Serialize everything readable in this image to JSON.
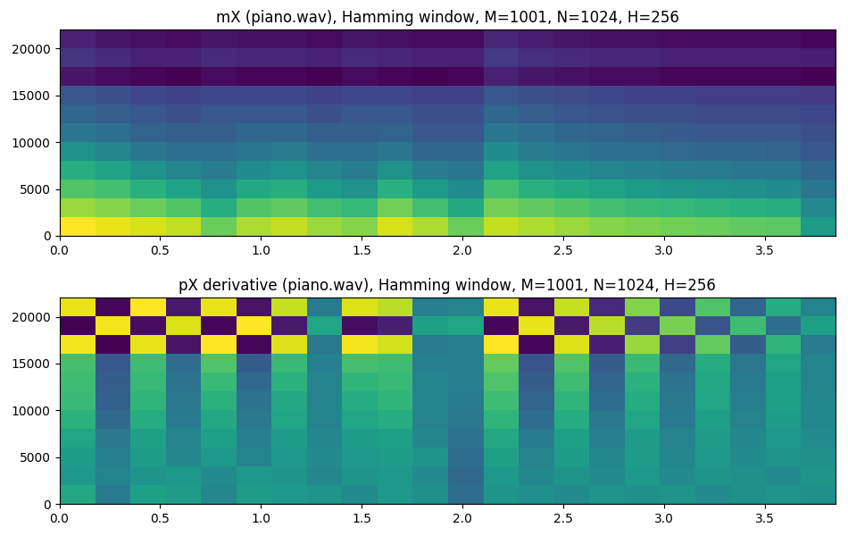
{
  "chart_data": [
    {
      "type": "heatmap",
      "title": "mX (piano.wav), Hamming window, M=1001, N=1024, H=256",
      "xlim": [
        0.0,
        3.85
      ],
      "ylim": [
        0,
        22050
      ],
      "xticks": [
        0.0,
        0.5,
        1.0,
        1.5,
        2.0,
        2.5,
        3.0,
        3.5
      ],
      "yticks": [
        0,
        5000,
        10000,
        15000,
        20000
      ],
      "cells": [
        [
          -30,
          -32,
          -34,
          -36,
          -45,
          -38,
          -36,
          -40,
          -42,
          -34,
          -38,
          -45,
          -36,
          -38,
          -40,
          -42,
          -43,
          -44,
          -45,
          -46,
          -47,
          -60
        ],
        [
          -40,
          -42,
          -45,
          -48,
          -55,
          -48,
          -46,
          -50,
          -52,
          -44,
          -50,
          -56,
          -44,
          -46,
          -48,
          -50,
          -51,
          -52,
          -53,
          -54,
          -55,
          -65
        ],
        [
          -48,
          -50,
          -54,
          -58,
          -62,
          -56,
          -55,
          -60,
          -62,
          -54,
          -60,
          -64,
          -50,
          -54,
          -56,
          -58,
          -60,
          -61,
          -62,
          -63,
          -64,
          -70
        ],
        [
          -55,
          -58,
          -62,
          -66,
          -68,
          -64,
          -62,
          -66,
          -68,
          -62,
          -68,
          -70,
          -58,
          -62,
          -64,
          -66,
          -67,
          -68,
          -69,
          -70,
          -70,
          -74
        ],
        [
          -62,
          -66,
          -70,
          -72,
          -72,
          -70,
          -68,
          -72,
          -72,
          -70,
          -74,
          -74,
          -64,
          -68,
          -70,
          -72,
          -72,
          -73,
          -74,
          -74,
          -75,
          -78
        ],
        [
          -70,
          -72,
          -75,
          -76,
          -76,
          -74,
          -74,
          -76,
          -76,
          -75,
          -78,
          -78,
          -70,
          -72,
          -74,
          -75,
          -76,
          -77,
          -78,
          -78,
          -78,
          -80
        ],
        [
          -74,
          -76,
          -78,
          -80,
          -78,
          -78,
          -78,
          -80,
          -78,
          -78,
          -80,
          -80,
          -74,
          -76,
          -78,
          -79,
          -80,
          -80,
          -81,
          -81,
          -81,
          -82
        ],
        [
          -78,
          -80,
          -82,
          -83,
          -82,
          -82,
          -82,
          -83,
          -82,
          -82,
          -83,
          -83,
          -78,
          -80,
          -81,
          -82,
          -83,
          -83,
          -84,
          -84,
          -84,
          -85
        ],
        [
          -92,
          -94,
          -95,
          -96,
          -94,
          -95,
          -95,
          -96,
          -94,
          -95,
          -96,
          -95,
          -90,
          -92,
          -93,
          -94,
          -94,
          -95,
          -95,
          -95,
          -95,
          -96
        ],
        [
          -86,
          -88,
          -90,
          -90,
          -88,
          -89,
          -89,
          -90,
          -88,
          -89,
          -90,
          -90,
          -85,
          -87,
          -88,
          -89,
          -89,
          -90,
          -90,
          -90,
          -90,
          -91
        ],
        [
          -90,
          -92,
          -93,
          -94,
          -92,
          -93,
          -93,
          -94,
          -92,
          -93,
          -94,
          -94,
          -89,
          -91,
          -92,
          -93,
          -93,
          -94,
          -94,
          -94,
          -94,
          -95
        ]
      ]
    },
    {
      "type": "heatmap",
      "title": "pX derivative (piano.wav), Hamming window, M=1001, N=1024, H=256",
      "xlim": [
        0.0,
        3.85
      ],
      "ylim": [
        0,
        22050
      ],
      "xticks": [
        0.0,
        0.5,
        1.0,
        1.5,
        2.0,
        2.5,
        3.0,
        3.5
      ],
      "yticks": [
        0,
        5000,
        10000,
        15000,
        20000
      ],
      "cells": [
        [
          0.6,
          -0.5,
          0.4,
          0.3,
          -0.2,
          0.3,
          0.2,
          0.1,
          -0.1,
          0.2,
          0.0,
          -0.8,
          0.1,
          0.0,
          -0.1,
          0.1,
          0.0,
          0.1,
          -0.1,
          0.0,
          0.1,
          0.0
        ],
        [
          0.2,
          -0.3,
          0.1,
          0.2,
          -0.1,
          0.2,
          0.1,
          -0.2,
          0.1,
          0.2,
          -0.1,
          -0.9,
          0.2,
          -0.2,
          0.1,
          -0.1,
          0.2,
          -0.1,
          0.1,
          0.0,
          -0.1,
          0.1
        ],
        [
          0.3,
          -0.4,
          0.3,
          -0.2,
          0.2,
          -0.3,
          0.2,
          -0.1,
          0.2,
          0.3,
          0.1,
          -0.8,
          0.4,
          -0.3,
          0.3,
          -0.2,
          0.3,
          -0.2,
          0.2,
          -0.1,
          0.1,
          0.0
        ],
        [
          0.5,
          -0.6,
          0.4,
          -0.3,
          0.4,
          -0.4,
          0.3,
          -0.2,
          0.3,
          0.4,
          -0.2,
          -0.7,
          0.6,
          -0.5,
          0.4,
          -0.4,
          0.3,
          -0.3,
          0.3,
          -0.2,
          0.2,
          -0.1
        ],
        [
          0.8,
          -0.9,
          0.7,
          -0.5,
          0.6,
          -0.6,
          0.5,
          -0.3,
          0.5,
          0.7,
          -0.3,
          -0.6,
          0.9,
          -0.8,
          0.7,
          -0.6,
          0.5,
          -0.5,
          0.4,
          -0.3,
          0.3,
          -0.2
        ],
        [
          1.0,
          -1.1,
          0.9,
          -0.6,
          0.8,
          -0.7,
          0.6,
          -0.3,
          0.7,
          0.9,
          -0.3,
          -0.5,
          1.1,
          -1.0,
          0.9,
          -0.8,
          0.7,
          -0.6,
          0.5,
          -0.4,
          0.4,
          -0.2
        ],
        [
          1.1,
          -1.2,
          1.0,
          -0.7,
          1.0,
          -0.9,
          0.8,
          -0.3,
          0.9,
          1.0,
          -0.3,
          -0.4,
          1.3,
          -1.2,
          1.1,
          -1.0,
          0.8,
          -0.7,
          0.6,
          -0.5,
          0.4,
          -0.3
        ],
        [
          1.2,
          -1.3,
          1.1,
          -0.8,
          1.3,
          -1.2,
          1.0,
          -0.4,
          1.2,
          1.1,
          -0.4,
          -0.4,
          1.5,
          -1.4,
          1.3,
          -1.2,
          1.0,
          -0.9,
          0.7,
          -0.6,
          0.5,
          -0.3
        ],
        [
          2.8,
          -2.9,
          2.7,
          -2.6,
          2.9,
          -2.8,
          2.6,
          -0.6,
          2.8,
          2.5,
          -0.5,
          -0.4,
          2.9,
          -2.8,
          2.6,
          -2.4,
          2.0,
          -1.8,
          1.5,
          -1.2,
          0.9,
          -0.5
        ],
        [
          -2.9,
          2.8,
          -2.7,
          2.6,
          -2.8,
          2.9,
          -2.5,
          0.5,
          -2.7,
          -2.4,
          0.4,
          0.5,
          -2.8,
          2.7,
          -2.5,
          2.3,
          -1.9,
          1.7,
          -1.4,
          1.1,
          -0.8,
          0.4
        ],
        [
          2.7,
          -2.8,
          2.9,
          -2.5,
          2.7,
          -2.6,
          2.4,
          -0.5,
          2.6,
          2.3,
          -0.4,
          -0.3,
          2.7,
          -2.6,
          2.4,
          -2.2,
          1.8,
          -1.6,
          1.3,
          -1.0,
          0.7,
          -0.3
        ]
      ]
    }
  ]
}
